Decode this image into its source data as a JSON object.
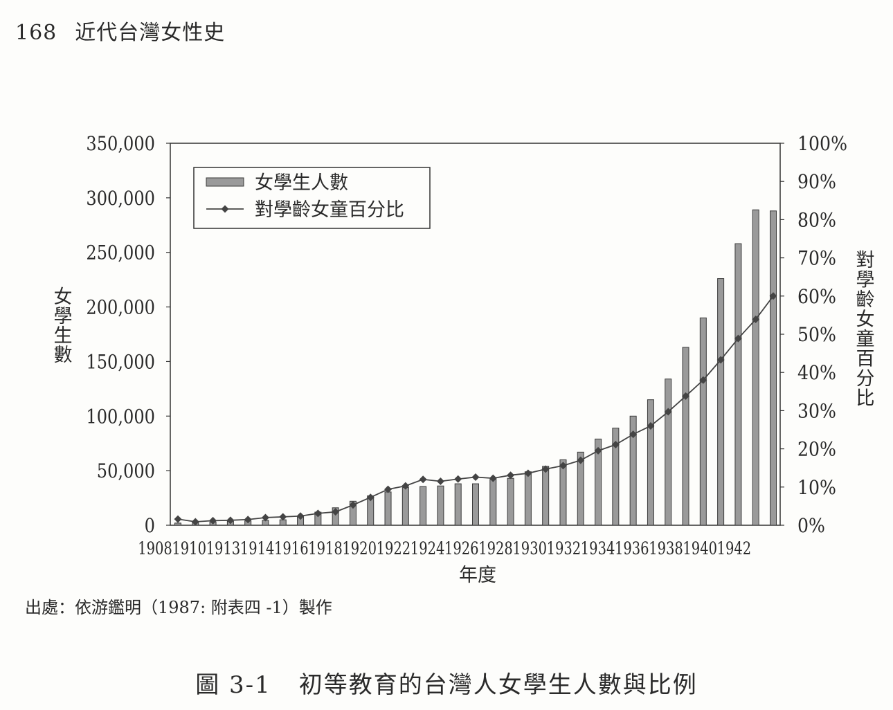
{
  "page": {
    "page_number": "168",
    "running_title": "近代台灣女性史"
  },
  "source_note": "出處：依游鑑明（1987: 附表四 -1）製作",
  "figure": {
    "number": "圖 3-1",
    "title": "初等教育的台灣人女學生人數與比例"
  },
  "chart_data": {
    "type": "bar",
    "title": "",
    "xlabel": "年度",
    "ylabel_left": "女學生數",
    "ylabel_right": "對學齡女童百分比",
    "x_tick_labels": [
      "1908",
      "1910",
      "1913",
      "1914",
      "1916",
      "1918",
      "1920",
      "1922",
      "1924",
      "1926",
      "1928",
      "1930",
      "1932",
      "1934",
      "1936",
      "1938",
      "1940",
      "1942"
    ],
    "y_left_ticks": [
      "350,000",
      "300,000",
      "250,000",
      "200,000",
      "150,000",
      "100,000",
      "50,000",
      "0"
    ],
    "y_right_ticks": [
      "100%",
      "90%",
      "80%",
      "70%",
      "60%",
      "50%",
      "40%",
      "30%",
      "20%",
      "10%",
      "0%"
    ],
    "ylim_left": [
      0,
      350000
    ],
    "ylim_right": [
      0,
      100
    ],
    "legend_position": "top-left",
    "grid": false,
    "series": [
      {
        "name": "女學生人數",
        "kind": "bar",
        "axis": "left",
        "color": "#9a9a9a",
        "values": [
          2000,
          2500,
          3000,
          3500,
          4000,
          4500,
          5000,
          8000,
          12000,
          16000,
          22000,
          27000,
          30500,
          34500,
          35500,
          36000,
          38000,
          38000,
          42000,
          43000,
          49000,
          54000,
          60000,
          67000,
          79000,
          89000,
          100000,
          115000,
          134000,
          163000,
          190000,
          226000,
          258000,
          289000,
          288000
        ]
      },
      {
        "name": "對學齡女童百分比",
        "kind": "line",
        "axis": "right",
        "color": "#444444",
        "values": [
          1.6,
          0.9,
          1.2,
          1.3,
          1.5,
          2.0,
          2.2,
          2.4,
          3.1,
          3.5,
          5.3,
          7.3,
          9.4,
          10.3,
          12.0,
          11.5,
          12.1,
          12.6,
          12.3,
          13.1,
          13.6,
          14.7,
          15.6,
          17.0,
          19.5,
          21.1,
          23.8,
          26.0,
          29.7,
          33.8,
          38.0,
          43.3,
          48.9,
          53.9,
          60.0
        ]
      }
    ]
  }
}
